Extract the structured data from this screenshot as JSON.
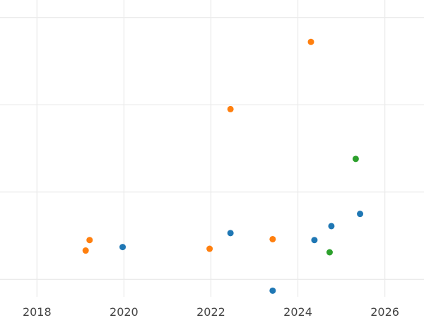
{
  "chart_data": {
    "type": "scatter",
    "title": "",
    "xlabel": "",
    "ylabel": "",
    "xlim": [
      2017.15,
      2026.9
    ],
    "ylim": [
      0.8,
      4.2
    ],
    "x_ticks": [
      2018,
      2020,
      2022,
      2024,
      2026
    ],
    "x_tick_labels": [
      "2018",
      "2020",
      "2022",
      "2024",
      "2026"
    ],
    "y_ticks": [
      1,
      2,
      3,
      4
    ],
    "grid": true,
    "legend": "none",
    "series": [
      {
        "color": "#1f77b4",
        "points": [
          {
            "x": 2019.97,
            "y": 1.37
          },
          {
            "x": 2022.45,
            "y": 1.53
          },
          {
            "x": 2023.42,
            "y": 0.87
          },
          {
            "x": 2024.38,
            "y": 1.45
          },
          {
            "x": 2024.77,
            "y": 1.61
          },
          {
            "x": 2025.43,
            "y": 1.75
          }
        ]
      },
      {
        "color": "#ff7f0e",
        "points": [
          {
            "x": 2019.12,
            "y": 1.33
          },
          {
            "x": 2019.21,
            "y": 1.45
          },
          {
            "x": 2021.97,
            "y": 1.35
          },
          {
            "x": 2022.45,
            "y": 2.95
          },
          {
            "x": 2023.42,
            "y": 1.46
          },
          {
            "x": 2024.3,
            "y": 3.72
          }
        ]
      },
      {
        "color": "#2ca02c",
        "points": [
          {
            "x": 2024.73,
            "y": 1.31
          },
          {
            "x": 2025.33,
            "y": 2.38
          }
        ]
      }
    ]
  }
}
